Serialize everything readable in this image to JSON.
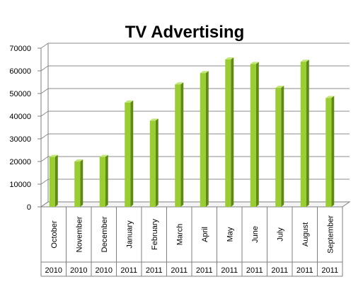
{
  "chart_data": {
    "type": "bar",
    "title": "TV Advertising",
    "xlabel": "",
    "ylabel": "",
    "categories": [
      "October",
      "November",
      "December",
      "January",
      "February",
      "March",
      "April",
      "May",
      "June",
      "July",
      "August",
      "September"
    ],
    "years": [
      "2010",
      "2010",
      "2010",
      "2011",
      "2011",
      "2011",
      "2011",
      "2011",
      "2011",
      "2011",
      "2011",
      "2011"
    ],
    "values": [
      22000,
      20000,
      22000,
      46000,
      38000,
      54000,
      59000,
      65000,
      63000,
      52500,
      64000,
      48000
    ],
    "ylim": [
      0,
      70000
    ],
    "yticks": [
      0,
      10000,
      20000,
      30000,
      40000,
      50000,
      60000,
      70000
    ],
    "ytick_labels": [
      "0",
      "10000",
      "20000",
      "30000",
      "40000",
      "50000",
      "60000",
      "70000"
    ],
    "grid": true,
    "legend": "none",
    "colors": {
      "bar_front": "#9acd32",
      "bar_side": "#5e8a12",
      "bar_top": "#c3e67a",
      "grid": "#8c8c8c",
      "axis": "#7f7f7f"
    }
  }
}
